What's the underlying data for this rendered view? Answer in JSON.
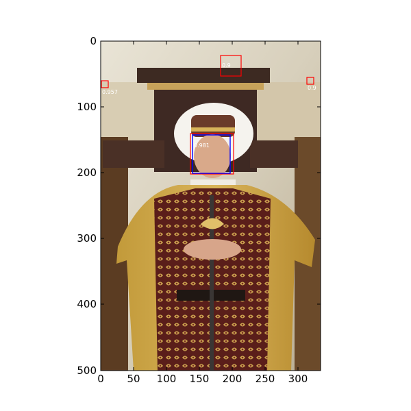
{
  "figure": {
    "x_ticks": [
      "0",
      "50",
      "100",
      "150",
      "200",
      "250",
      "300"
    ],
    "y_ticks": [
      "0",
      "100",
      "200",
      "300",
      "400",
      "500"
    ]
  },
  "image": {
    "subject": "man in Renaissance costume with feathered hat seated on a throne, holding a sword"
  },
  "detections": [
    {
      "label": "0.981",
      "color": "#ff0000"
    },
    {
      "label": "0.957",
      "color": "#ff0000"
    },
    {
      "label": "0.9",
      "color": "#ff0000"
    },
    {
      "label": "0.9",
      "color": "#ff0000"
    }
  ],
  "ground_truth": {
    "color": "#0000ff"
  }
}
